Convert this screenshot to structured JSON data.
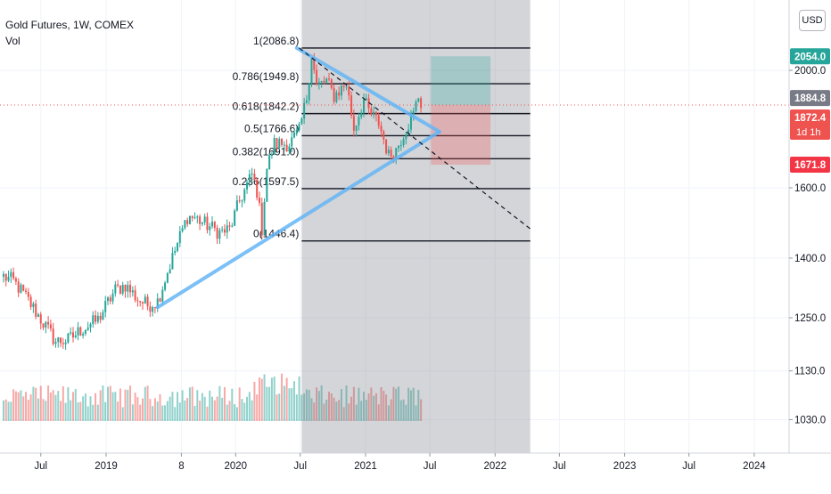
{
  "header": {
    "symbol_line": "Gold Futures, 1W, COMEX",
    "volume_label": "Vol",
    "currency_button": "USD"
  },
  "colors": {
    "up": "#26a69a",
    "down": "#ef5350",
    "triangle": "#64b5f6",
    "fib_zone": "#787b86",
    "target_zone": "#26a69a",
    "stop_zone": "#ef5350",
    "price_line": "#ef5350"
  },
  "chart_data": {
    "type": "candlestick",
    "title": "Gold Futures, 1W, COMEX",
    "x_axis": {
      "ticks": [
        "Jul",
        "2019",
        "8",
        "2020",
        "Jul",
        "2021",
        "Jul",
        "2022",
        "Jul",
        "2023",
        "Jul",
        "2024"
      ],
      "tick_dates": [
        "2018-07-01",
        "2019-01-01",
        "2019-08-01",
        "2020-01-01",
        "2020-07-01",
        "2021-01-01",
        "2021-07-01",
        "2022-01-01",
        "2022-07-01",
        "2023-01-01",
        "2023-07-01",
        "2024-01-01"
      ],
      "range": [
        "2018-03-18",
        "2024-03-31"
      ]
    },
    "y_axis": {
      "scale": "log",
      "ticks": [
        1030.0,
        1130.0,
        1250.0,
        1400.0,
        1600.0,
        2000.0
      ],
      "range": [
        975,
        2230
      ]
    },
    "price_labels": [
      {
        "value": "2054.0",
        "color": "#26a69a"
      },
      {
        "value": "1884.8",
        "color": "#787b86"
      },
      {
        "value": "1872.4",
        "sub": "1d 1h",
        "color": "#ef5350"
      },
      {
        "value": "1671.8",
        "color": "#f23645"
      }
    ],
    "fibonacci": {
      "start": "2020-07-05",
      "end": "2022-04-10",
      "levels": [
        {
          "ratio": "1",
          "price": 2086.8,
          "label": "1(2086.8)"
        },
        {
          "ratio": "0.786",
          "price": 1949.8,
          "label": "0.786(1949.8)"
        },
        {
          "ratio": "0.618",
          "price": 1842.2,
          "label": "0.618(1842.2)"
        },
        {
          "ratio": "0.5",
          "price": 1766.6,
          "label": "0.5(1766.6)"
        },
        {
          "ratio": "0.382",
          "price": 1691.0,
          "label": "0.382(1691.0)"
        },
        {
          "ratio": "0.236",
          "price": 1597.5,
          "label": "0.236(1597.5)"
        },
        {
          "ratio": "0",
          "price": 1446.4,
          "label": "0(1446.4)"
        }
      ]
    },
    "triangle": {
      "upper": [
        [
          "2020-06-21",
          2086.8
        ],
        [
          "2021-07-28",
          1780
        ]
      ],
      "lower": [
        [
          "2019-05-26",
          1275
        ],
        [
          "2021-07-28",
          1780
        ]
      ]
    },
    "trend_dashed": [
      [
        "2020-06-28",
        2086.8
      ],
      [
        "2022-04-10",
        1480
      ]
    ],
    "position": {
      "start": "2021-07-04",
      "end": "2021-12-19",
      "entry": 1872.4,
      "target": 2054.0,
      "stop": 1671.8
    },
    "last_price_line": 1872.4,
    "ohlc_keypoints": [
      [
        "2018-03-18",
        1352
      ],
      [
        "2018-04-15",
        1340
      ],
      [
        "2018-05-20",
        1300
      ],
      [
        "2018-06-24",
        1255
      ],
      [
        "2018-08-12",
        1195
      ],
      [
        "2018-09-16",
        1198
      ],
      [
        "2018-10-28",
        1225
      ],
      [
        "2018-12-09",
        1245
      ],
      [
        "2019-01-27",
        1318
      ],
      [
        "2019-02-24",
        1330
      ],
      [
        "2019-03-31",
        1295
      ],
      [
        "2019-04-28",
        1280
      ],
      [
        "2019-05-26",
        1290
      ],
      [
        "2019-06-16",
        1345
      ],
      [
        "2019-07-14",
        1420
      ],
      [
        "2019-08-18",
        1515
      ],
      [
        "2019-09-08",
        1512
      ],
      [
        "2019-10-13",
        1490
      ],
      [
        "2019-11-17",
        1470
      ],
      [
        "2019-12-15",
        1478
      ],
      [
        "2020-01-12",
        1560
      ],
      [
        "2020-02-16",
        1640
      ],
      [
        "2020-03-01",
        1590
      ],
      [
        "2020-03-15",
        1480
      ],
      [
        "2020-03-29",
        1660
      ],
      [
        "2020-04-19",
        1740
      ],
      [
        "2020-05-31",
        1740
      ],
      [
        "2020-06-28",
        1780
      ],
      [
        "2020-07-19",
        1900
      ],
      [
        "2020-08-02",
        2060
      ],
      [
        "2020-08-16",
        1940
      ],
      [
        "2020-09-13",
        1960
      ],
      [
        "2020-10-04",
        1905
      ],
      [
        "2020-11-08",
        1950
      ],
      [
        "2020-11-29",
        1790
      ],
      [
        "2020-12-27",
        1890
      ],
      [
        "2021-01-10",
        1850
      ],
      [
        "2021-02-07",
        1810
      ],
      [
        "2021-03-07",
        1700
      ],
      [
        "2021-03-28",
        1720
      ],
      [
        "2021-04-18",
        1775
      ],
      [
        "2021-05-16",
        1840
      ],
      [
        "2021-05-30",
        1905
      ],
      [
        "2021-06-06",
        1878
      ]
    ],
    "volume": "relative volume bars under price, red/green by candle direction"
  }
}
